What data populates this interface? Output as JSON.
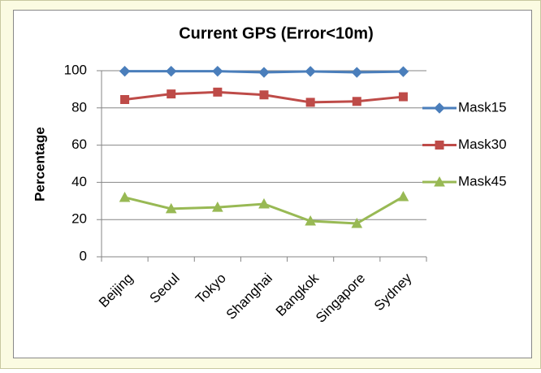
{
  "chart_data": {
    "type": "line",
    "title": "Current GPS  (Error<10m)",
    "y_label": "Percentage",
    "categories": [
      "Beijing",
      "Seoul",
      "Tokyo",
      "Shanghai",
      "Bangkok",
      "Singapore",
      "Sydney"
    ],
    "series": [
      {
        "name": "Mask15",
        "color": "#4a7ebb",
        "marker": "diamond",
        "values": [
          99.7,
          99.7,
          99.7,
          99.1,
          99.6,
          99.1,
          99.5
        ]
      },
      {
        "name": "Mask30",
        "color": "#be4b48",
        "marker": "square",
        "values": [
          84.5,
          87.5,
          88.5,
          87,
          83,
          83.5,
          86
        ]
      },
      {
        "name": "Mask45",
        "color": "#98b954",
        "marker": "triangle",
        "values": [
          31.9,
          25.8,
          26.6,
          28.4,
          19.2,
          17.9,
          32.3
        ]
      }
    ],
    "ylim": [
      0,
      100
    ],
    "yticks": [
      0,
      20,
      40,
      60,
      80,
      100
    ],
    "grid": true,
    "legend": "right"
  }
}
